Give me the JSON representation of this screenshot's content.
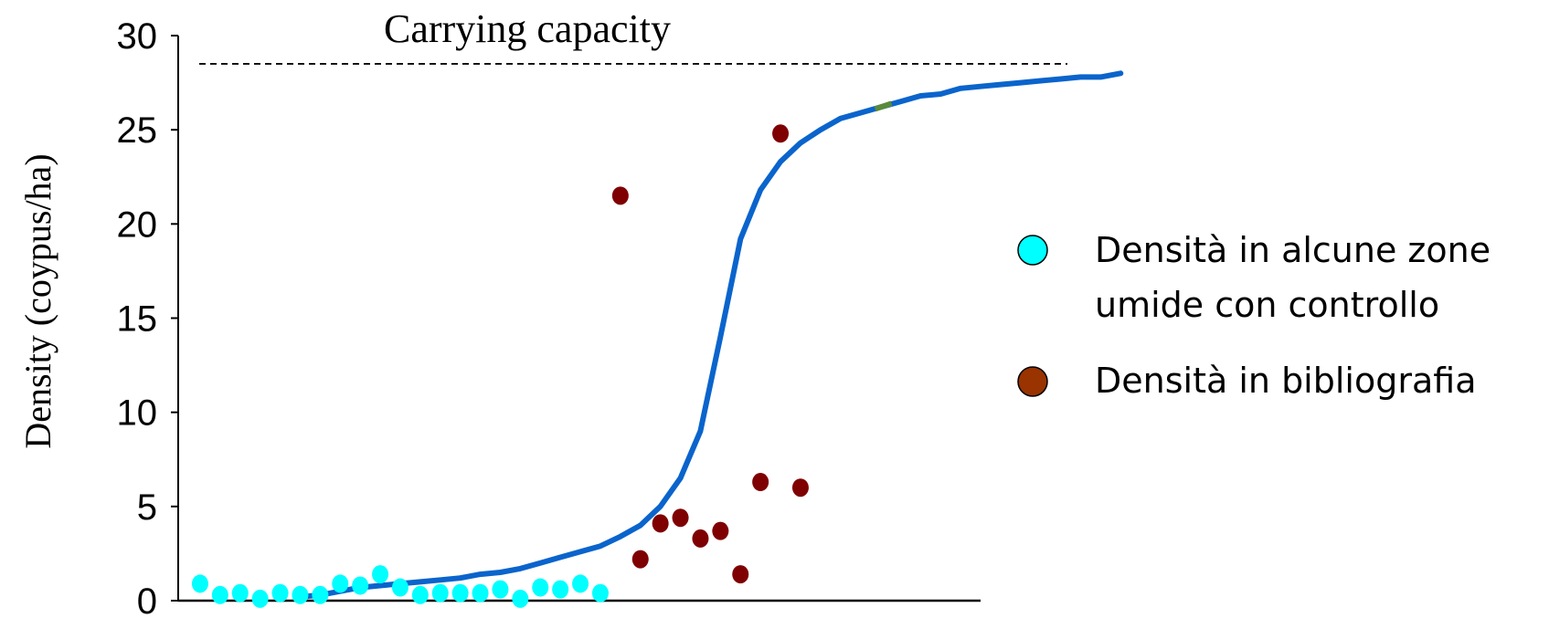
{
  "chart_data": {
    "type": "scatter",
    "ylabel": "Density (coypus/ha)",
    "xlabel": "",
    "ylim": [
      0,
      30
    ],
    "yticks": [
      0,
      5,
      10,
      15,
      20,
      25,
      30
    ],
    "carrying_capacity": {
      "label": "Carrying capacity",
      "value": 28.5
    },
    "curve": {
      "x": [
        5.5,
        6.5,
        7.5,
        8.5,
        9.5,
        10.5,
        11.5,
        12.5,
        13.5,
        14.5,
        15.5,
        16.5,
        17.5,
        18.5,
        19.5,
        20.5,
        21.5,
        22.5,
        23.5,
        24.5,
        25.5,
        26.5,
        27.5,
        28.5,
        29.5,
        30.5,
        31.5,
        32.5,
        33.5,
        34.5,
        35.5,
        36.5,
        37.5,
        38.5,
        39.5,
        40.5,
        41.5,
        42.5,
        43.5,
        44.5,
        45.5,
        46.5
      ],
      "y": [
        0.2,
        0.3,
        0.5,
        0.7,
        0.8,
        0.9,
        1.0,
        1.1,
        1.2,
        1.4,
        1.5,
        1.7,
        2.0,
        2.3,
        2.6,
        2.9,
        3.4,
        4.0,
        5.0,
        6.5,
        9.0,
        14.0,
        19.2,
        21.8,
        23.3,
        24.3,
        25.0,
        25.6,
        25.9,
        26.2,
        26.5,
        26.8,
        26.9,
        27.2,
        27.3,
        27.4,
        27.5,
        27.6,
        27.7,
        27.8,
        27.8,
        28.0
      ]
    },
    "series": [
      {
        "name": "Densità in alcune zone umide con controllo",
        "color": "#00ffff",
        "x": [
          0.5,
          1.5,
          2.5,
          3.5,
          4.5,
          5.5,
          6.5,
          7.5,
          8.5,
          9.5,
          10.5,
          11.5,
          12.5,
          13.5,
          14.5,
          15.5,
          16.5,
          17.5,
          18.5,
          19.5,
          20.5
        ],
        "y": [
          0.9,
          0.3,
          0.4,
          0.1,
          0.4,
          0.3,
          0.3,
          0.9,
          0.8,
          1.4,
          0.7,
          0.3,
          0.4,
          0.4,
          0.4,
          0.6,
          0.1,
          0.7,
          0.6,
          0.9,
          0.4
        ]
      },
      {
        "name": "Densità in bibliografia",
        "color": "#7f0000",
        "x": [
          21.5,
          22.5,
          23.5,
          24.5,
          25.5,
          26.5,
          27.5,
          28.5,
          29.5,
          30.5
        ],
        "y": [
          21.5,
          2.2,
          4.1,
          4.4,
          3.3,
          3.7,
          1.4,
          6.3,
          24.8,
          6.0
        ]
      }
    ],
    "legend": {
      "position": "right",
      "items": [
        {
          "label_line1": "Densità in alcune zone",
          "label_line2": "umide con controllo",
          "color": "#00ffff"
        },
        {
          "label_line1": "Densità in bibliografia",
          "color": "#993300"
        }
      ]
    },
    "colors": {
      "curve": "#0a64cc",
      "curve_highlight": "#5a8a3c",
      "axis": "#000000"
    }
  }
}
